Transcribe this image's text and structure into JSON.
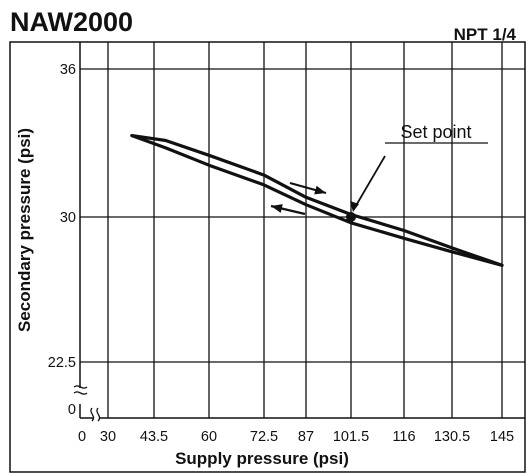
{
  "chart_data": {
    "type": "line",
    "title": "NAW2000",
    "subtitle": "NPT 1/4",
    "xlabel": "Supply pressure (psi)",
    "ylabel": "Secondary pressure (psi)",
    "x_ticks": [
      "0",
      "30",
      "43.5",
      "60",
      "72.5",
      "87",
      "101.5",
      "116",
      "130.5",
      "145"
    ],
    "y_ticks": [
      "0",
      "22.5",
      "30",
      "36"
    ],
    "x_tick_values": [
      0,
      30,
      43.5,
      60,
      72.5,
      87,
      101.5,
      116,
      130.5,
      145
    ],
    "y_tick_values": [
      0,
      22.5,
      30,
      36
    ],
    "xlim": [
      0,
      145
    ],
    "ylim": [
      0,
      37
    ],
    "axis_breaks": [
      "x",
      "y"
    ],
    "grid": true,
    "series": [
      {
        "values": [
          {
            "x": 37,
            "y": 33.3
          },
          {
            "x": 47,
            "y": 33.1
          },
          {
            "x": 60,
            "y": 32.5
          },
          {
            "x": 72.5,
            "y": 31.7
          },
          {
            "x": 87,
            "y": 30.8
          },
          {
            "x": 101.5,
            "y": 30.1
          },
          {
            "x": 116,
            "y": 29.3
          },
          {
            "x": 130.5,
            "y": 28.4
          },
          {
            "x": 145,
            "y": 27.5
          }
        ]
      },
      {
        "values": [
          {
            "x": 145,
            "y": 27.5
          },
          {
            "x": 130.5,
            "y": 28.2
          },
          {
            "x": 116,
            "y": 28.9
          },
          {
            "x": 101.5,
            "y": 29.7
          },
          {
            "x": 87,
            "y": 30.5
          },
          {
            "x": 72.5,
            "y": 31.3
          },
          {
            "x": 60,
            "y": 32.1
          },
          {
            "x": 47,
            "y": 32.8
          },
          {
            "x": 37,
            "y": 33.3
          }
        ]
      }
    ],
    "annotations": [
      {
        "text": "Set point",
        "x": 101.5,
        "y": 30
      }
    ],
    "colors": {
      "line": "#111111",
      "grid": "#111111",
      "background": "#ffffff"
    }
  }
}
